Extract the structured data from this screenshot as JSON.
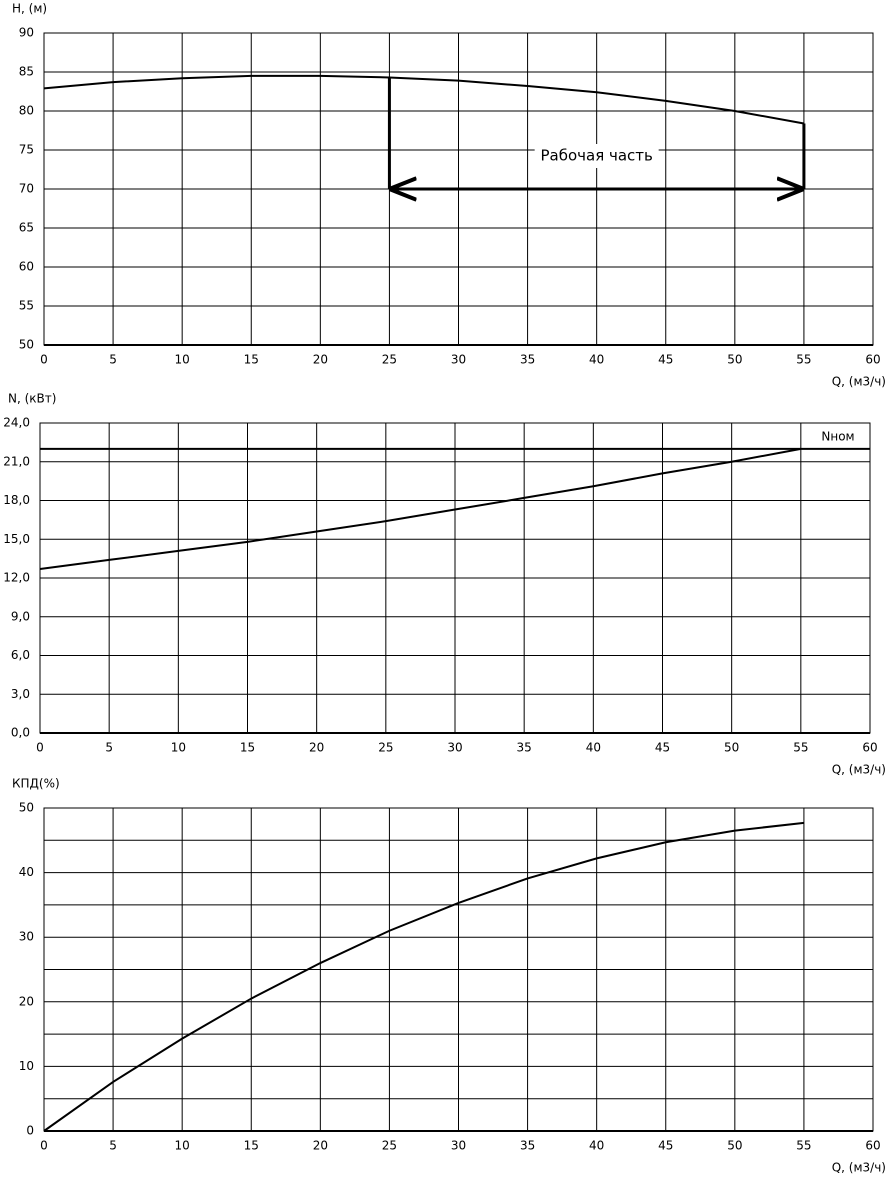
{
  "chart_data": [
    {
      "type": "line",
      "y_label": "H, (м)",
      "x_label": "Q, (м3/ч)",
      "x": [
        0,
        5,
        10,
        15,
        20,
        25,
        30,
        35,
        40,
        45,
        50,
        55
      ],
      "series": [
        {
          "color": "#000000",
          "values": [
            82.9,
            83.7,
            84.2,
            84.5,
            84.5,
            84.3,
            83.9,
            83.2,
            82.4,
            81.3,
            80.0,
            78.4
          ]
        }
      ],
      "xlim": [
        0,
        60
      ],
      "xticks": [
        0,
        5,
        10,
        15,
        20,
        25,
        30,
        35,
        40,
        45,
        50,
        55,
        60
      ],
      "ylim": [
        50,
        90
      ],
      "yticks": [
        50,
        55,
        60,
        65,
        70,
        75,
        80,
        85,
        90
      ],
      "grid": true,
      "annotation": {
        "text": "Рабочая часть",
        "x": [
          25,
          55
        ],
        "y": 70
      }
    },
    {
      "type": "line",
      "y_label": "N, (кВт)",
      "x_label": "Q, (м3/ч)",
      "x": [
        0,
        5,
        10,
        15,
        20,
        25,
        30,
        35,
        40,
        45,
        50,
        55
      ],
      "series": [
        {
          "color": "#000000",
          "values": [
            12.7,
            13.4,
            14.1,
            14.8,
            15.6,
            16.4,
            17.3,
            18.2,
            19.1,
            20.1,
            21.0,
            22.0
          ]
        }
      ],
      "reference_line": {
        "label": "Nном",
        "value": 22
      },
      "xlim": [
        0,
        60
      ],
      "xticks": [
        0,
        5,
        10,
        15,
        20,
        25,
        30,
        35,
        40,
        45,
        50,
        55,
        60
      ],
      "ylim": [
        0,
        24
      ],
      "yticks": [
        {
          "value": 0,
          "label": "0,0"
        },
        {
          "value": 3,
          "label": "3,0"
        },
        {
          "value": 6,
          "label": "6,0"
        },
        {
          "value": 9,
          "label": "9,0"
        },
        {
          "value": 12,
          "label": "12,0"
        },
        {
          "value": 15,
          "label": "15,0"
        },
        {
          "value": 18,
          "label": "18,0"
        },
        {
          "value": 21,
          "label": "21,0"
        },
        {
          "value": 24,
          "label": "24,0"
        }
      ],
      "grid": true
    },
    {
      "type": "line",
      "y_label": "КПД(%)",
      "x_label": "Q, (м3/ч)",
      "x": [
        0,
        5,
        10,
        15,
        20,
        25,
        30,
        35,
        40,
        45,
        50,
        55
      ],
      "series": [
        {
          "color": "#000000",
          "values": [
            0,
            7.6,
            14.3,
            20.5,
            26.0,
            31.0,
            35.3,
            39.1,
            42.2,
            44.7,
            46.5,
            47.7
          ]
        }
      ],
      "xlim": [
        0,
        60
      ],
      "xticks": [
        0,
        5,
        10,
        15,
        20,
        25,
        30,
        35,
        40,
        45,
        50,
        55,
        60
      ],
      "ylim": [
        0,
        50
      ],
      "yticks": [
        0,
        10,
        20,
        30,
        40,
        50
      ],
      "y_minor_ticks": [
        5,
        15,
        25,
        35,
        45
      ],
      "grid": true
    }
  ]
}
